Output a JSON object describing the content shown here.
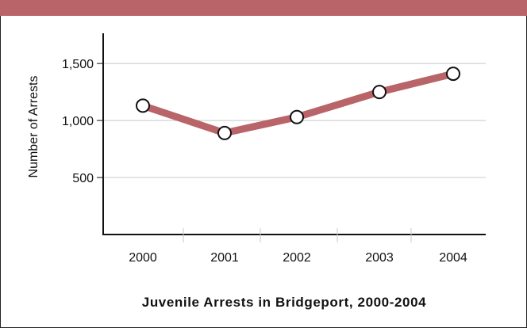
{
  "colors": {
    "accent": "#b86468",
    "grid": "#c8c8c8",
    "axis": "#111111",
    "marker_fill": "#ffffff"
  },
  "chart_data": {
    "type": "line",
    "title": "Juvenile Arrests in Bridgeport, 2000-2004",
    "xlabel": "",
    "ylabel": "Number of Arrests",
    "categories": [
      "2000",
      "2001",
      "2002",
      "2003",
      "2004"
    ],
    "series": [
      {
        "values": [
          1130,
          890,
          1030,
          1250,
          1410
        ]
      }
    ],
    "yticks": [
      500,
      1000,
      1500
    ],
    "ytick_labels": [
      "500",
      "1,000",
      "1,500"
    ],
    "ylim": [
      0,
      1640
    ],
    "grid": true,
    "legend": "none"
  }
}
